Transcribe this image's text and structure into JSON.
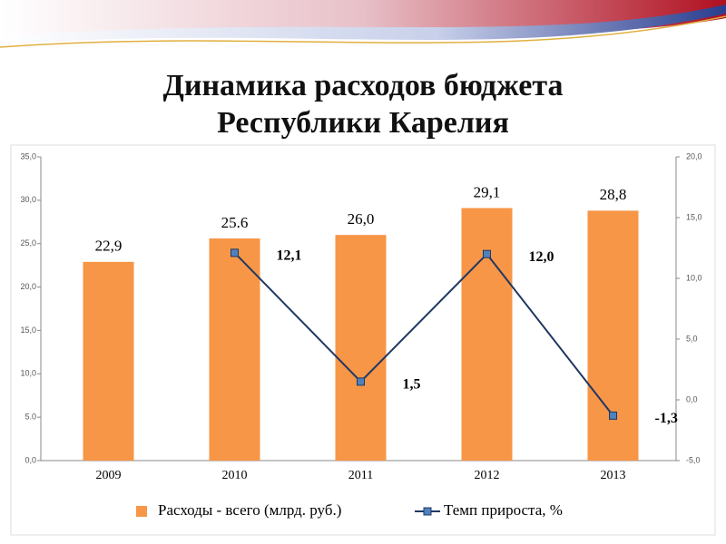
{
  "chart_data": {
    "type": "bar_line",
    "title": [
      "Динамика расходов бюджета",
      "Республики Карелия"
    ],
    "categories": [
      "2009",
      "2010",
      "2011",
      "2012",
      "2013"
    ],
    "series": [
      {
        "name": "Расходы - всего (млрд. руб.)",
        "type": "bar",
        "color": "#f79646",
        "values": [
          22.9,
          25.6,
          26.0,
          29.1,
          28.8
        ],
        "value_labels": [
          "22,9",
          "25.6",
          "26,0",
          "29,1",
          "28,8"
        ]
      },
      {
        "name": "Темп прироста, %",
        "type": "line",
        "axis": "y2",
        "color": "#1f3864",
        "marker_color": "#4f81bd",
        "values": [
          null,
          12.1,
          1.5,
          12.0,
          -1.3
        ],
        "value_labels": [
          null,
          "12,1",
          "1,5",
          "12,0",
          "-1,3"
        ]
      }
    ],
    "ylim": [
      0,
      35
    ],
    "yticks": [
      {
        "value": 0,
        "label": "0,0"
      },
      {
        "value": 5,
        "label": "5.0"
      },
      {
        "value": 10,
        "label": "10,0"
      },
      {
        "value": 15,
        "label": "15,0"
      },
      {
        "value": 20,
        "label": "20,0"
      },
      {
        "value": 25,
        "label": "25,0"
      },
      {
        "value": 30,
        "label": "30,0"
      },
      {
        "value": 35,
        "label": "35,0"
      }
    ],
    "y2lim": [
      -5,
      20
    ],
    "y2ticks": [
      {
        "value": -5,
        "label": "-5,0"
      },
      {
        "value": 0,
        "label": "0,0"
      },
      {
        "value": 5,
        "label": "5,0"
      },
      {
        "value": 10,
        "label": "10,0"
      },
      {
        "value": 15,
        "label": "15,0"
      },
      {
        "value": 20,
        "label": "20,0"
      }
    ],
    "legend": "bottom"
  }
}
